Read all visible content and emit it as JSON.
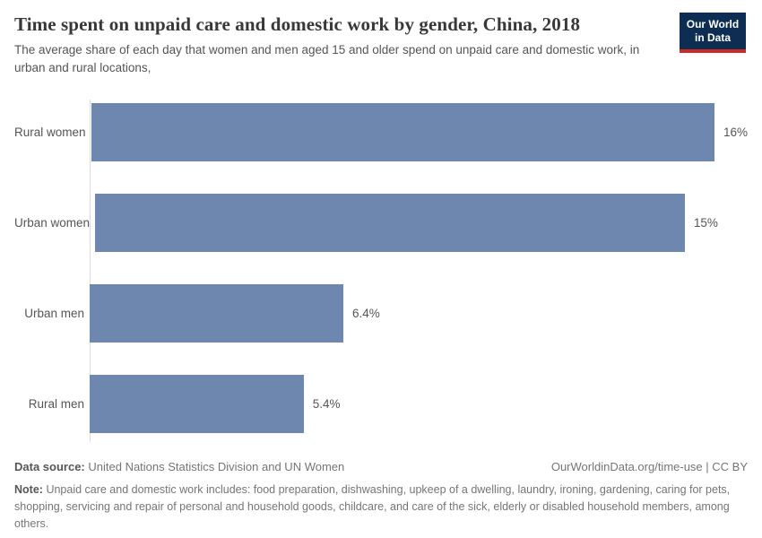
{
  "header": {
    "title": "Time spent on unpaid care and domestic work by gender, China, 2018",
    "subtitle": "The average share of each day that women and men aged 15 and older spend on unpaid care and domestic work, in urban and rural locations,",
    "logo": {
      "line1": "Our World",
      "line2": "in Data"
    }
  },
  "chart_data": {
    "type": "bar",
    "orientation": "horizontal",
    "title": "Time spent on unpaid care and domestic work by gender, China, 2018",
    "categories": [
      "Rural women",
      "Urban women",
      "Urban men",
      "Rural men"
    ],
    "values": [
      16,
      15,
      6.4,
      5.4
    ],
    "value_labels": [
      "16%",
      "15%",
      "6.4%",
      "5.4%"
    ],
    "unit": "% of each day",
    "xlim": [
      0,
      16.6
    ],
    "grid": false,
    "legend": "none",
    "bar_color": "#6e87ae",
    "axis_color": "#d9d9d9"
  },
  "footer": {
    "source_label": "Data source:",
    "source_text": "United Nations Statistics Division and UN Women",
    "credit": "OurWorldinData.org/time-use | CC BY",
    "note_label": "Note:",
    "note_text": "Unpaid care and domestic work includes: food preparation, dishwashing, upkeep of a dwelling, laundry, ironing, gardening, caring for pets, shopping, servicing and repair of personal and household goods, childcare, and care of the sick, elderly or disabled household members, among others."
  },
  "colors": {
    "bar": "#6e87ae",
    "logo_navy": "#0d2e52",
    "logo_red": "#cf2a27",
    "title_text": "#383838",
    "body_text": "#555555",
    "footer_text": "#757575"
  }
}
